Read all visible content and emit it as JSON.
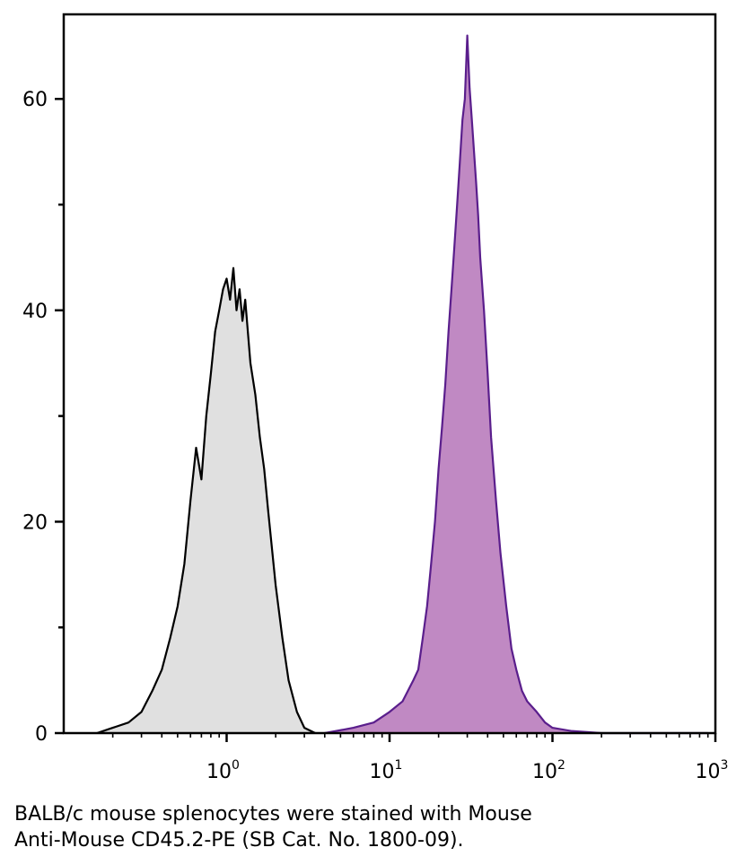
{
  "chart_data": {
    "type": "area",
    "x_scale": "log",
    "xlim": [
      0.1,
      1000
    ],
    "ylim": [
      0,
      68
    ],
    "x_ticks": [
      {
        "value": 1,
        "base": "10",
        "exp": "0"
      },
      {
        "value": 10,
        "base": "10",
        "exp": "1"
      },
      {
        "value": 100,
        "base": "10",
        "exp": "2"
      },
      {
        "value": 1000,
        "base": "10",
        "exp": "3"
      }
    ],
    "y_ticks": [
      {
        "value": 0,
        "label": "0"
      },
      {
        "value": 20,
        "label": "20"
      },
      {
        "value": 40,
        "label": "40"
      },
      {
        "value": 60,
        "label": "60"
      }
    ],
    "y_minor_ticks": [
      10,
      30,
      50
    ],
    "grid": false,
    "series": [
      {
        "fill": "#e0e0e0",
        "stroke": "#000000",
        "x": [
          0.16,
          0.2,
          0.25,
          0.3,
          0.35,
          0.4,
          0.45,
          0.5,
          0.55,
          0.6,
          0.65,
          0.7,
          0.75,
          0.8,
          0.85,
          0.9,
          0.95,
          1.0,
          1.05,
          1.1,
          1.15,
          1.2,
          1.25,
          1.3,
          1.4,
          1.5,
          1.6,
          1.7,
          1.8,
          2.0,
          2.2,
          2.4,
          2.7,
          3.0,
          3.5
        ],
        "y": [
          0,
          0.5,
          1,
          2,
          4,
          6,
          9,
          12,
          16,
          22,
          27,
          24,
          30,
          34,
          38,
          40,
          42,
          43,
          41,
          44,
          40,
          42,
          39,
          41,
          35,
          32,
          28,
          25,
          21,
          14,
          9,
          5,
          2,
          0.5,
          0
        ]
      },
      {
        "fill": "#c089c3",
        "stroke": "#5a1e8c",
        "x": [
          4,
          6,
          8,
          10,
          12,
          14,
          15,
          16,
          17,
          18,
          19,
          20,
          21,
          22,
          23,
          24,
          25,
          26,
          27,
          28,
          29,
          30,
          31,
          32,
          33,
          34,
          35,
          36,
          38,
          40,
          42,
          45,
          48,
          52,
          56,
          60,
          65,
          70,
          80,
          90,
          100,
          130,
          200,
          400,
          900
        ],
        "y": [
          0,
          0.5,
          1,
          2,
          3,
          5,
          6,
          9,
          12,
          16,
          20,
          25,
          29,
          33,
          38,
          42,
          46,
          50,
          54,
          58,
          60,
          66,
          61,
          58,
          55,
          52,
          49,
          45,
          40,
          34,
          28,
          22,
          17,
          12,
          8,
          6,
          4,
          3,
          2,
          1,
          0.5,
          0.2,
          0,
          0,
          0
        ]
      }
    ]
  },
  "caption": {
    "line1": "BALB/c mouse splenocytes were stained with Mouse",
    "line2": "Anti-Mouse CD45.2-PE (SB Cat. No. 1800-09)."
  }
}
